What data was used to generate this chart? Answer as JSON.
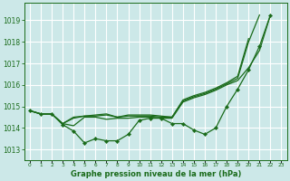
{
  "title": "Graphe pression niveau de la mer (hPa)",
  "ylim": [
    1012.5,
    1019.8
  ],
  "yticks": [
    1013,
    1014,
    1015,
    1016,
    1017,
    1018,
    1019
  ],
  "line_color": "#1a6b1a",
  "bg_color": "#cce8e8",
  "grid_color": "#ffffff",
  "series_marker": {
    "x": [
      0,
      1,
      2,
      3,
      4,
      5,
      6,
      7,
      8,
      9,
      10,
      11,
      12,
      13,
      14,
      15,
      16,
      17,
      18,
      19,
      20,
      21,
      22
    ],
    "y": [
      1014.8,
      1014.65,
      1014.65,
      1014.15,
      1013.85,
      1013.3,
      1013.5,
      1013.4,
      1013.4,
      1013.7,
      1014.35,
      1014.45,
      1014.45,
      1014.2,
      1014.2,
      1013.9,
      1013.7,
      1014.0,
      1015.0,
      1015.8,
      1016.7,
      1017.8,
      1019.25
    ]
  },
  "series2": {
    "x": [
      0,
      1,
      2,
      3,
      4,
      5,
      6,
      7,
      8,
      9,
      10,
      11,
      12,
      13,
      14,
      15,
      16,
      17,
      18,
      19,
      20,
      21,
      22
    ],
    "y": [
      1014.8,
      1014.65,
      1014.65,
      1014.2,
      1014.1,
      1014.5,
      1014.5,
      1014.4,
      1014.45,
      1014.45,
      1014.5,
      1014.5,
      1014.45,
      1014.45,
      1015.2,
      1015.4,
      1015.55,
      1015.75,
      1016.0,
      1016.2,
      1016.8,
      1017.6,
      1019.25
    ]
  },
  "series3": {
    "x": [
      0,
      1,
      2,
      3,
      4,
      5,
      6,
      7,
      8,
      9,
      10,
      11,
      12,
      13,
      14,
      15,
      16,
      17,
      18,
      19,
      20,
      21
    ],
    "y": [
      1014.8,
      1014.65,
      1014.65,
      1014.2,
      1014.45,
      1014.55,
      1014.55,
      1014.6,
      1014.5,
      1014.55,
      1014.55,
      1014.55,
      1014.5,
      1014.5,
      1015.25,
      1015.45,
      1015.6,
      1015.8,
      1016.05,
      1016.3,
      1018.0,
      1019.25
    ]
  },
  "series4": {
    "x": [
      0,
      1,
      2,
      3,
      4,
      5,
      6,
      7,
      8,
      9,
      10,
      11,
      12,
      13,
      14,
      15,
      16,
      17,
      18,
      19,
      20
    ],
    "y": [
      1014.8,
      1014.65,
      1014.65,
      1014.2,
      1014.5,
      1014.55,
      1014.6,
      1014.65,
      1014.5,
      1014.6,
      1014.6,
      1014.6,
      1014.55,
      1014.5,
      1015.3,
      1015.5,
      1015.65,
      1015.85,
      1016.1,
      1016.4,
      1018.15
    ]
  }
}
